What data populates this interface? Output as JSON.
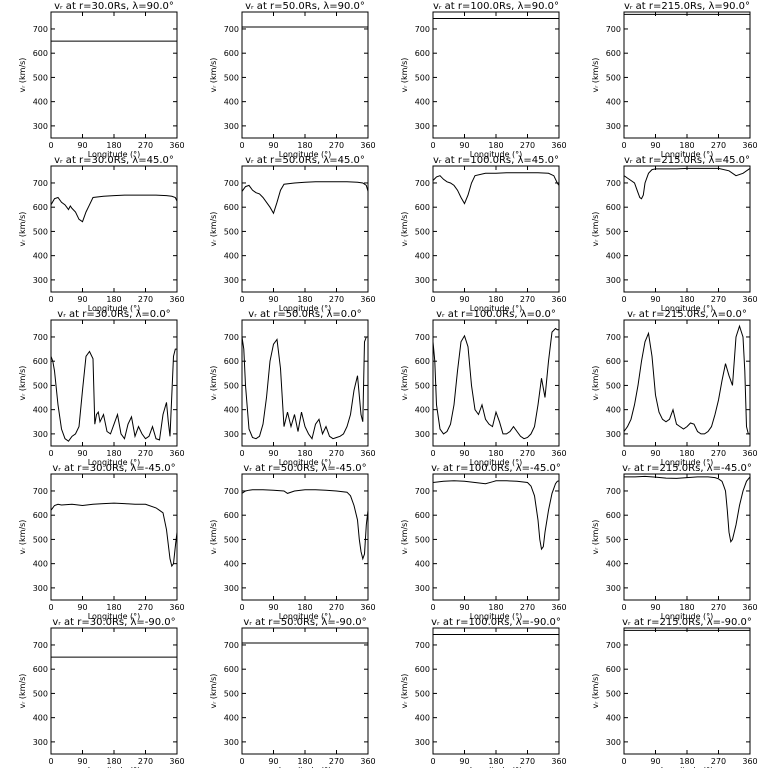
{
  "panel_titles": [
    [
      "vᵣ at r=30.0Rs, λ=90.0°",
      "vᵣ at r=50.0Rs, λ=90.0°",
      "vᵣ at r=100.0Rs, λ=90.0°",
      "vᵣ at r=215.0Rs, λ=90.0°"
    ],
    [
      "vᵣ at r=30.0Rs, λ=45.0°",
      "vᵣ at r=50.0Rs, λ=45.0°",
      "vᵣ at r=100.0Rs, λ=45.0°",
      "vᵣ at r=215.0Rs, λ=45.0°"
    ],
    [
      "vᵣ at r=30.0Rs, λ=0.0°",
      "vᵣ at r=50.0Rs, λ=0.0°",
      "vᵣ at r=100.0Rs, λ=0.0°",
      "vᵣ at r=215.0Rs, λ=0.0°"
    ],
    [
      "vᵣ at r=30.0Rs, λ=-45.0°",
      "vᵣ at r=50.0Rs, λ=-45.0°",
      "vᵣ at r=100.0Rs, λ=-45.0°",
      "vᵣ at r=215.0Rs, λ=-45.0°"
    ],
    [
      "vᵣ at r=30.0Rs, λ=-90.0°",
      "vᵣ at r=50.0Rs, λ=-90.0°",
      "vᵣ at r=100.0Rs, λ=-90.0°",
      "vᵣ at r=215.0Rs, λ=-90.0°"
    ]
  ],
  "xlabel": "Longitude (°)",
  "ylabel": "vᵣ (km/s)",
  "chart_data": {
    "type": "line",
    "layout": "grid of 5 rows by 4 columns",
    "xlim": [
      0,
      360
    ],
    "ylim": [
      250,
      770
    ],
    "xticks": [
      0,
      90,
      180,
      270,
      360
    ],
    "yticks": [
      300,
      400,
      500,
      600,
      700
    ],
    "line_color": "#000000",
    "panels": [
      [
        {
          "x": [
            0,
            360
          ],
          "y": [
            650,
            650
          ]
        },
        {
          "x": [
            0,
            360
          ],
          "y": [
            708,
            708
          ]
        },
        {
          "x": [
            0,
            360
          ],
          "y": [
            743,
            743
          ]
        },
        {
          "x": [
            0,
            360
          ],
          "y": [
            760,
            760
          ]
        }
      ],
      [
        {
          "x": [
            0,
            10,
            20,
            30,
            40,
            50,
            55,
            60,
            70,
            80,
            90,
            100,
            110,
            120,
            150,
            180,
            210,
            240,
            270,
            300,
            330,
            345,
            355,
            360
          ],
          "y": [
            610,
            635,
            640,
            620,
            610,
            590,
            605,
            595,
            580,
            550,
            540,
            580,
            610,
            640,
            645,
            648,
            650,
            650,
            650,
            650,
            648,
            645,
            640,
            625
          ]
        },
        {
          "x": [
            0,
            10,
            20,
            30,
            40,
            50,
            60,
            70,
            80,
            90,
            100,
            110,
            120,
            150,
            180,
            210,
            240,
            270,
            300,
            330,
            345,
            355,
            360
          ],
          "y": [
            665,
            685,
            690,
            670,
            660,
            655,
            640,
            620,
            600,
            575,
            620,
            670,
            695,
            700,
            703,
            705,
            705,
            705,
            705,
            703,
            700,
            690,
            665
          ]
        },
        {
          "x": [
            0,
            10,
            20,
            30,
            40,
            50,
            60,
            70,
            80,
            90,
            100,
            110,
            120,
            150,
            180,
            210,
            240,
            270,
            300,
            330,
            345,
            355,
            360
          ],
          "y": [
            710,
            725,
            730,
            715,
            705,
            700,
            690,
            670,
            640,
            615,
            650,
            700,
            730,
            740,
            740,
            742,
            742,
            742,
            742,
            740,
            730,
            700,
            690
          ]
        },
        {
          "x": [
            0,
            10,
            20,
            30,
            40,
            45,
            50,
            55,
            60,
            70,
            80,
            90,
            100,
            110,
            120,
            150,
            180,
            210,
            240,
            270,
            300,
            320,
            340,
            360
          ],
          "y": [
            730,
            720,
            710,
            700,
            660,
            640,
            635,
            650,
            700,
            740,
            755,
            758,
            758,
            758,
            758,
            758,
            760,
            760,
            760,
            760,
            750,
            730,
            740,
            760
          ]
        }
      ],
      [
        {
          "x": [
            0,
            5,
            10,
            20,
            30,
            40,
            50,
            60,
            70,
            80,
            90,
            100,
            110,
            120,
            125,
            130,
            135,
            140,
            150,
            160,
            170,
            180,
            190,
            200,
            210,
            220,
            230,
            240,
            250,
            260,
            270,
            280,
            290,
            300,
            310,
            320,
            330,
            335,
            340,
            350,
            355,
            360
          ],
          "y": [
            620,
            600,
            560,
            420,
            320,
            280,
            270,
            290,
            300,
            330,
            480,
            620,
            640,
            610,
            340,
            380,
            390,
            350,
            380,
            310,
            300,
            340,
            380,
            300,
            280,
            340,
            370,
            290,
            330,
            300,
            280,
            290,
            330,
            280,
            275,
            380,
            430,
            350,
            290,
            620,
            650,
            650
          ]
        },
        {
          "x": [
            0,
            5,
            10,
            20,
            30,
            40,
            50,
            60,
            70,
            80,
            90,
            100,
            110,
            120,
            130,
            140,
            150,
            160,
            170,
            180,
            190,
            200,
            210,
            220,
            230,
            240,
            250,
            260,
            270,
            280,
            290,
            300,
            310,
            320,
            330,
            340,
            345,
            350,
            355,
            360
          ],
          "y": [
            700,
            650,
            500,
            320,
            285,
            280,
            290,
            340,
            450,
            600,
            670,
            690,
            570,
            330,
            390,
            330,
            380,
            310,
            390,
            330,
            300,
            280,
            340,
            360,
            300,
            330,
            290,
            280,
            285,
            290,
            300,
            330,
            380,
            480,
            540,
            380,
            350,
            680,
            700,
            700
          ]
        },
        {
          "x": [
            0,
            5,
            10,
            20,
            30,
            40,
            50,
            60,
            70,
            80,
            90,
            100,
            110,
            120,
            130,
            140,
            150,
            160,
            170,
            180,
            190,
            200,
            210,
            220,
            230,
            240,
            250,
            260,
            270,
            280,
            290,
            300,
            310,
            320,
            330,
            340,
            350,
            355,
            360
          ],
          "y": [
            680,
            600,
            420,
            320,
            300,
            310,
            340,
            420,
            560,
            680,
            705,
            660,
            500,
            400,
            380,
            420,
            360,
            340,
            330,
            390,
            350,
            300,
            300,
            310,
            330,
            310,
            290,
            280,
            285,
            300,
            330,
            420,
            530,
            450,
            600,
            720,
            735,
            730,
            730
          ]
        },
        {
          "x": [
            0,
            5,
            10,
            20,
            30,
            40,
            50,
            60,
            70,
            80,
            90,
            100,
            110,
            120,
            130,
            140,
            150,
            160,
            170,
            180,
            190,
            200,
            210,
            220,
            230,
            240,
            250,
            260,
            270,
            280,
            290,
            300,
            310,
            320,
            330,
            340,
            345,
            350,
            355,
            360
          ],
          "y": [
            310,
            320,
            330,
            360,
            420,
            500,
            600,
            680,
            715,
            620,
            460,
            390,
            360,
            350,
            360,
            400,
            340,
            330,
            320,
            330,
            345,
            340,
            310,
            300,
            300,
            310,
            330,
            380,
            440,
            520,
            590,
            540,
            500,
            700,
            745,
            700,
            560,
            330,
            300,
            300
          ]
        }
      ],
      [
        {
          "x": [
            0,
            10,
            20,
            30,
            60,
            90,
            120,
            150,
            180,
            210,
            240,
            270,
            300,
            310,
            320,
            330,
            340,
            345,
            350,
            355,
            360
          ],
          "y": [
            620,
            640,
            645,
            642,
            645,
            640,
            645,
            648,
            650,
            648,
            645,
            645,
            630,
            620,
            610,
            540,
            420,
            390,
            400,
            470,
            530
          ]
        },
        {
          "x": [
            0,
            10,
            20,
            30,
            60,
            90,
            120,
            130,
            150,
            180,
            210,
            240,
            270,
            300,
            310,
            320,
            330,
            335,
            340,
            345,
            350,
            355,
            360
          ],
          "y": [
            690,
            700,
            703,
            705,
            705,
            703,
            700,
            690,
            700,
            705,
            705,
            703,
            700,
            695,
            680,
            640,
            580,
            500,
            450,
            420,
            440,
            560,
            620
          ]
        },
        {
          "x": [
            0,
            30,
            60,
            90,
            120,
            150,
            170,
            180,
            210,
            240,
            270,
            280,
            290,
            300,
            305,
            310,
            315,
            320,
            330,
            340,
            350,
            355,
            360
          ],
          "y": [
            735,
            740,
            742,
            740,
            735,
            730,
            738,
            742,
            742,
            740,
            735,
            720,
            680,
            580,
            500,
            460,
            470,
            530,
            620,
            690,
            730,
            740,
            742
          ]
        },
        {
          "x": [
            0,
            30,
            60,
            90,
            120,
            150,
            180,
            210,
            240,
            260,
            270,
            280,
            285,
            290,
            295,
            300,
            305,
            310,
            320,
            330,
            340,
            350,
            360
          ],
          "y": [
            758,
            758,
            760,
            757,
            753,
            752,
            755,
            758,
            758,
            755,
            750,
            740,
            720,
            700,
            620,
            530,
            490,
            500,
            560,
            640,
            700,
            740,
            758
          ]
        }
      ],
      [
        {
          "x": [
            0,
            360
          ],
          "y": [
            650,
            650
          ]
        },
        {
          "x": [
            0,
            360
          ],
          "y": [
            708,
            708
          ]
        },
        {
          "x": [
            0,
            360
          ],
          "y": [
            743,
            743
          ]
        },
        {
          "x": [
            0,
            360
          ],
          "y": [
            760,
            760
          ]
        }
      ]
    ]
  }
}
